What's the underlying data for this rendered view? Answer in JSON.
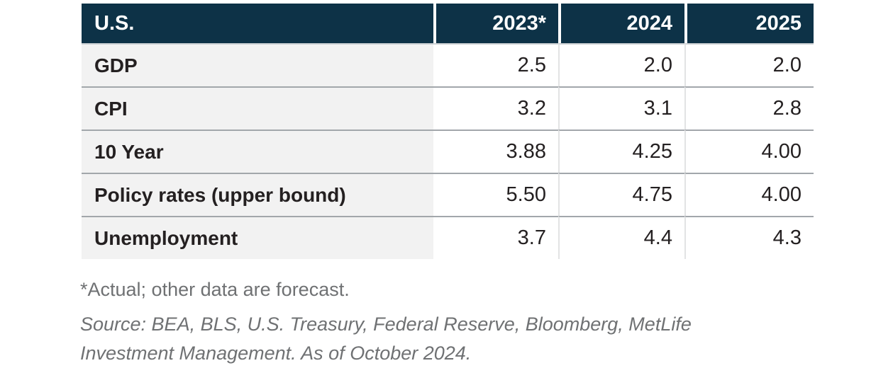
{
  "chart_data": {
    "type": "table",
    "title": "U.S.",
    "columns": [
      "2023*",
      "2024",
      "2025"
    ],
    "rows": [
      {
        "label": "GDP",
        "values": [
          "2.5",
          "2.0",
          "2.0"
        ]
      },
      {
        "label": "CPI",
        "values": [
          "3.2",
          "3.1",
          "2.8"
        ]
      },
      {
        "label": "10 Year",
        "values": [
          "3.88",
          "4.25",
          "4.00"
        ]
      },
      {
        "label": "Policy rates (upper bound)",
        "values": [
          "5.50",
          "4.75",
          "4.00"
        ]
      },
      {
        "label": "Unemployment",
        "values": [
          "3.7",
          "4.4",
          "4.3"
        ]
      }
    ],
    "footnote": "*Actual; other data are forecast.",
    "source_lines": [
      "Source: BEA, BLS, U.S. Treasury, Federal Reserve, Bloomberg, MetLife",
      "Investment Management. As of October 2024."
    ],
    "legend": null,
    "grid": "row-separators"
  },
  "colors": {
    "header_bg": "#0d3247",
    "header_text": "#ffffff",
    "label_bg": "#f2f2f2",
    "row_line": "#a2a7ab",
    "row_line_light": "#ccd1d4",
    "col_line": "#e2e3e4",
    "body_text": "#242021",
    "note_text": "#6f7173",
    "page_bg": "#ffffff"
  }
}
